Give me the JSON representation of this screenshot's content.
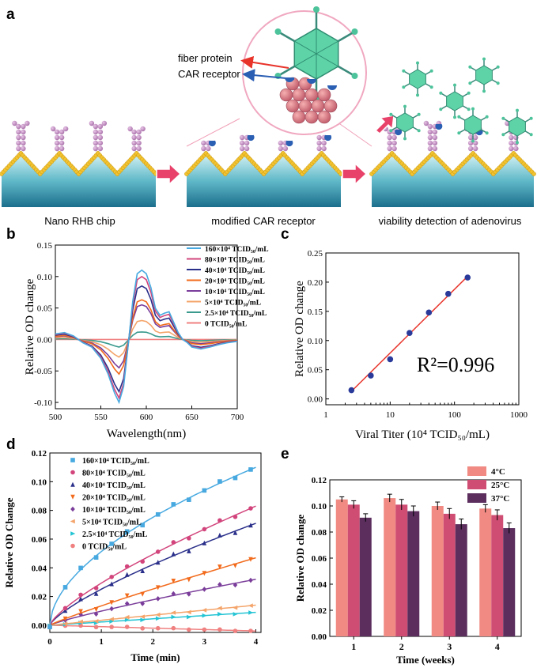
{
  "panel_a": {
    "label": "a",
    "stage_labels": [
      "Nano RHB chip",
      "modified CAR receptor",
      "viability detection of adenovirus"
    ],
    "callouts": {
      "fiber": "fiber protein",
      "car": "CAR receptor"
    }
  },
  "colors": {
    "red": "#e8332a",
    "blue": "#2b5fb3",
    "pink_arrow": "#e8426a",
    "gold": "#f2c230",
    "sea": "#2a8fa8",
    "virus": "#4cc39a"
  },
  "chart_data": [
    {
      "id": "b",
      "label": "b",
      "type": "line",
      "title": "",
      "xlabel": "Wavelength(nm)",
      "ylabel": "Relative OD change",
      "xlim": [
        500,
        700
      ],
      "ylim": [
        -0.11,
        0.15
      ],
      "xticks": [
        500,
        550,
        600,
        650,
        700
      ],
      "yticks": [
        -0.1,
        -0.05,
        0.0,
        0.05,
        0.1,
        0.15
      ],
      "ytick_labels": [
        "-0.10",
        "-0.05",
        "0.00",
        "0.05",
        "0.10",
        "0.15"
      ],
      "shape_points": [
        [
          500,
          0.08
        ],
        [
          510,
          0.1
        ],
        [
          520,
          0.05
        ],
        [
          530,
          -0.05
        ],
        [
          540,
          -0.12
        ],
        [
          550,
          -0.3
        ],
        [
          558,
          -0.55
        ],
        [
          565,
          -0.85
        ],
        [
          570,
          -1.0
        ],
        [
          575,
          -0.75
        ],
        [
          580,
          -0.1
        ],
        [
          585,
          0.55
        ],
        [
          590,
          0.95
        ],
        [
          595,
          1.0
        ],
        [
          600,
          0.95
        ],
        [
          605,
          0.75
        ],
        [
          610,
          0.45
        ],
        [
          615,
          0.35
        ],
        [
          620,
          0.38
        ],
        [
          625,
          0.4
        ],
        [
          630,
          0.25
        ],
        [
          635,
          0.1
        ],
        [
          640,
          0.0
        ],
        [
          645,
          -0.05
        ],
        [
          650,
          -0.12
        ],
        [
          660,
          -0.15
        ],
        [
          670,
          -0.12
        ],
        [
          680,
          -0.08
        ],
        [
          690,
          -0.05
        ],
        [
          700,
          -0.03
        ]
      ],
      "series": [
        {
          "name": "160×10⁴ TCID₅₀/mL",
          "color": "#47a9e0",
          "peak": 0.11,
          "trough": -0.1
        },
        {
          "name": "80×10⁴ TCID₅₀/mL",
          "color": "#d2457c",
          "peak": 0.1,
          "trough": -0.093
        },
        {
          "name": "40×10⁴ TCID₅₀/mL",
          "color": "#2a2f8a",
          "peak": 0.085,
          "trough": -0.083
        },
        {
          "name": "20×10⁴ TCID₅₀/mL",
          "color": "#f26b1d",
          "peak": 0.063,
          "trough": -0.055
        },
        {
          "name": "10×10⁴ TCID₅₀/mL",
          "color": "#7a3d9a",
          "peak": 0.055,
          "trough": -0.045
        },
        {
          "name": "5×10⁴ TCID₅₀/mL",
          "color": "#f4a46a",
          "peak": 0.03,
          "trough": -0.028
        },
        {
          "name": "2.5×10⁴ TCID₅₀/mL",
          "color": "#3a9a8e",
          "peak": 0.012,
          "trough": -0.012
        },
        {
          "name": "0 TCID₅₀/mL",
          "color": "#f08080",
          "peak": 0.0,
          "trough": 0.0
        }
      ]
    },
    {
      "id": "c",
      "label": "c",
      "type": "scatter",
      "title": "",
      "xlabel": "Viral Titer (10⁴ TCID₅₀/mL)",
      "ylabel": "Relative OD change",
      "xscale": "log",
      "xlim": [
        1,
        1000
      ],
      "ylim": [
        -0.01,
        0.25
      ],
      "xticks": [
        1,
        10,
        100,
        1000
      ],
      "yticks": [
        0.0,
        0.05,
        0.1,
        0.15,
        0.2,
        0.25
      ],
      "ytick_labels": [
        "0.00",
        "0.05",
        "0.10",
        "0.15",
        "0.20",
        "0.25"
      ],
      "x": [
        2.5,
        5,
        10,
        20,
        40,
        80,
        160
      ],
      "y": [
        0.015,
        0.04,
        0.068,
        0.113,
        0.148,
        0.18,
        0.208
      ],
      "fit_line": {
        "x": [
          2.5,
          160
        ],
        "y": [
          0.013,
          0.21
        ]
      },
      "annotation": "R²=0.996"
    },
    {
      "id": "d",
      "label": "d",
      "type": "scatter",
      "title": "",
      "xlabel": "Time (min)",
      "ylabel": "Relative OD Change",
      "xlim": [
        0,
        4.1
      ],
      "ylim": [
        -0.005,
        0.12
      ],
      "xticks": [
        0,
        1,
        2,
        3,
        4
      ],
      "yticks": [
        0.0,
        0.02,
        0.04,
        0.06,
        0.08,
        0.1,
        0.12
      ],
      "ytick_labels": [
        "0.00",
        "0.02",
        "0.04",
        "0.06",
        "0.08",
        "0.10",
        "0.12"
      ],
      "x": [
        0,
        0.3,
        0.6,
        0.9,
        1.2,
        1.5,
        1.8,
        2.1,
        2.4,
        2.7,
        3.0,
        3.3,
        3.6,
        3.9
      ],
      "series": [
        {
          "name": "160×10⁴ TCID₅₀/mL",
          "color": "#47a9e0",
          "marker": "square",
          "end": 0.11,
          "power": 0.55
        },
        {
          "name": "80×10⁴ TCID₅₀/mL",
          "color": "#d2457c",
          "marker": "circle",
          "end": 0.083,
          "power": 0.75
        },
        {
          "name": "40×10⁴ TCID₅₀/mL",
          "color": "#2a2f8a",
          "marker": "triangle-up",
          "end": 0.071,
          "power": 0.75
        },
        {
          "name": "20×10⁴ TCID₅₀/mL",
          "color": "#f26b1d",
          "marker": "triangle-down",
          "end": 0.047,
          "power": 0.9
        },
        {
          "name": "10×10⁴ TCID₅₀/mL",
          "color": "#7a3d9a",
          "marker": "diamond",
          "end": 0.032,
          "power": 0.85
        },
        {
          "name": "5×10⁴ TCID₅₀/mL",
          "color": "#f4a46a",
          "marker": "triangle-left",
          "end": 0.014,
          "power": 1.0
        },
        {
          "name": "2.5×10⁴ TCID₅₀/mL",
          "color": "#24c4d4",
          "marker": "triangle-right",
          "end": 0.009,
          "power": 1.0
        },
        {
          "name": "0 TCID₅₀/mL",
          "color": "#f08080",
          "marker": "hexagon",
          "end": -0.004,
          "power": 1.0
        }
      ]
    },
    {
      "id": "e",
      "label": "e",
      "type": "bar",
      "title": "",
      "xlabel": "Time (weeks)",
      "ylabel": "Relative OD change",
      "categories": [
        "1",
        "2",
        "3",
        "4"
      ],
      "ylim": [
        0,
        0.12
      ],
      "yticks": [
        0.0,
        0.02,
        0.04,
        0.06,
        0.08,
        0.1,
        0.12
      ],
      "ytick_labels": [
        "0.00",
        "0.02",
        "0.04",
        "0.06",
        "0.08",
        "0.10",
        "0.12"
      ],
      "series": [
        {
          "name": "4°C",
          "color": "#f08a82",
          "values": [
            0.105,
            0.106,
            0.1,
            0.098
          ],
          "errors": [
            0.002,
            0.003,
            0.003,
            0.003
          ]
        },
        {
          "name": "25°C",
          "color": "#cf4d72",
          "values": [
            0.101,
            0.101,
            0.094,
            0.093
          ],
          "errors": [
            0.003,
            0.004,
            0.004,
            0.004
          ]
        },
        {
          "name": "37°C",
          "color": "#5b2e5e",
          "values": [
            0.091,
            0.096,
            0.086,
            0.083
          ],
          "errors": [
            0.003,
            0.004,
            0.004,
            0.004
          ]
        }
      ]
    }
  ]
}
